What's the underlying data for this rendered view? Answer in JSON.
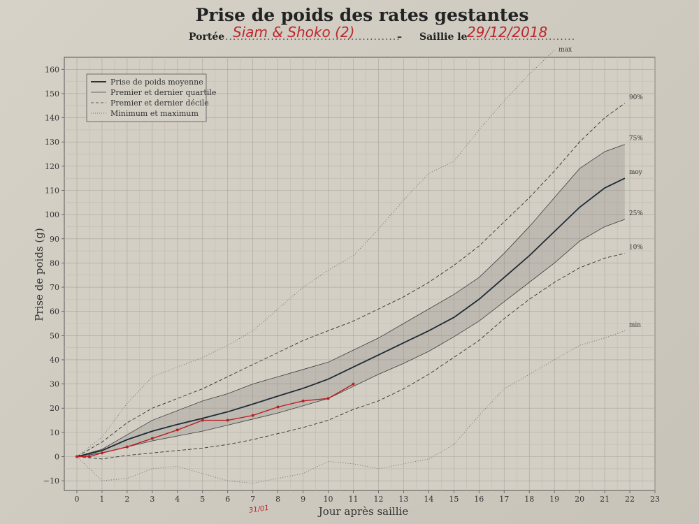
{
  "header": {
    "title": "Prise de poids des rates gestantes",
    "portee_label": "Portée",
    "portee_value": "Siam & Shoko (2)",
    "dash": "–",
    "saillie_label": "Saillie le",
    "saillie_value": "29/12/2018"
  },
  "chart_data": {
    "type": "line",
    "xlabel": "Jour après saillie",
    "ylabel": "Prise de poids (g)",
    "xlim": [
      -0.5,
      23
    ],
    "ylim": [
      -14,
      165
    ],
    "x_ticks": [
      0,
      1,
      2,
      3,
      4,
      5,
      6,
      7,
      8,
      9,
      10,
      11,
      12,
      13,
      14,
      15,
      16,
      17,
      18,
      19,
      20,
      21,
      22,
      23
    ],
    "y_ticks": [
      -10,
      0,
      10,
      20,
      30,
      40,
      50,
      60,
      70,
      80,
      90,
      100,
      110,
      120,
      130,
      140,
      150,
      160
    ],
    "grid": true,
    "legend_position": "top-left",
    "legend": [
      {
        "label": "Prise de poids moyenne",
        "style": "mean"
      },
      {
        "label": "Premier et dernier quartile",
        "style": "quartile"
      },
      {
        "label": "Premier et dernier décile",
        "style": "decile"
      },
      {
        "label": "Minimum et maximum",
        "style": "minmax"
      }
    ],
    "x": [
      0,
      1,
      2,
      3,
      4,
      5,
      6,
      7,
      8,
      9,
      10,
      11,
      12,
      13,
      14,
      15,
      16,
      17,
      18,
      19,
      20,
      21,
      21.8
    ],
    "series": [
      {
        "name": "max",
        "label": "max",
        "style": "minmax",
        "values": [
          0,
          8,
          22,
          33,
          37,
          41,
          46,
          52,
          61,
          70,
          77,
          83,
          94,
          106,
          117,
          122,
          135,
          147,
          158,
          168,
          null,
          null,
          null
        ]
      },
      {
        "name": "90%",
        "label": "90%",
        "style": "decile",
        "values": [
          0,
          6,
          14,
          20,
          24,
          28,
          33,
          38,
          43,
          48,
          52,
          56,
          61,
          66,
          72,
          79,
          87,
          97,
          107,
          118,
          130,
          140,
          146
        ]
      },
      {
        "name": "75%",
        "label": "75%",
        "style": "quartile",
        "values": [
          0,
          3,
          9,
          15,
          19,
          23,
          26,
          30,
          33,
          36,
          39,
          44,
          49,
          55,
          61,
          67,
          74,
          84,
          95,
          107,
          119,
          126,
          129
        ]
      },
      {
        "name": "moy",
        "label": "moy",
        "style": "mean",
        "values": [
          0,
          2.5,
          7,
          10.5,
          13.3,
          15.8,
          18.5,
          21.7,
          25,
          28.2,
          32,
          37,
          42,
          47,
          52,
          57.5,
          65,
          74,
          83,
          93,
          103,
          111,
          115
        ]
      },
      {
        "name": "25%",
        "label": "25%",
        "style": "quartile",
        "values": [
          0,
          1.5,
          4,
          6.5,
          8.5,
          10.5,
          13,
          15.5,
          18,
          21,
          24,
          29,
          34,
          38.5,
          43.5,
          49.5,
          56,
          64,
          72,
          80,
          89,
          95,
          98
        ]
      },
      {
        "name": "10%",
        "label": "10%",
        "style": "decile",
        "values": [
          0,
          -1,
          0.5,
          1.5,
          2.5,
          3.5,
          5,
          7,
          9.5,
          12,
          15,
          19.5,
          23,
          28,
          34,
          41,
          48,
          57,
          65,
          72,
          78,
          82,
          84
        ]
      },
      {
        "name": "min",
        "label": "min",
        "style": "minmax",
        "values": [
          0,
          -10,
          -9,
          -5,
          -4,
          -7,
          -10,
          -11,
          -9,
          -7,
          -2,
          -3,
          -5,
          -3,
          -1,
          5,
          17,
          28,
          34,
          40,
          46,
          49,
          52
        ]
      },
      {
        "name": "Siam & Shoko",
        "style": "observed",
        "x": [
          0,
          0.5,
          1,
          2,
          3,
          4,
          5,
          6,
          7,
          8,
          9,
          10,
          11
        ],
        "values": [
          0,
          0,
          1.5,
          4,
          7.5,
          11,
          15,
          15,
          17,
          20.5,
          23,
          24,
          30
        ]
      }
    ],
    "annotations": [
      "31/01"
    ]
  }
}
